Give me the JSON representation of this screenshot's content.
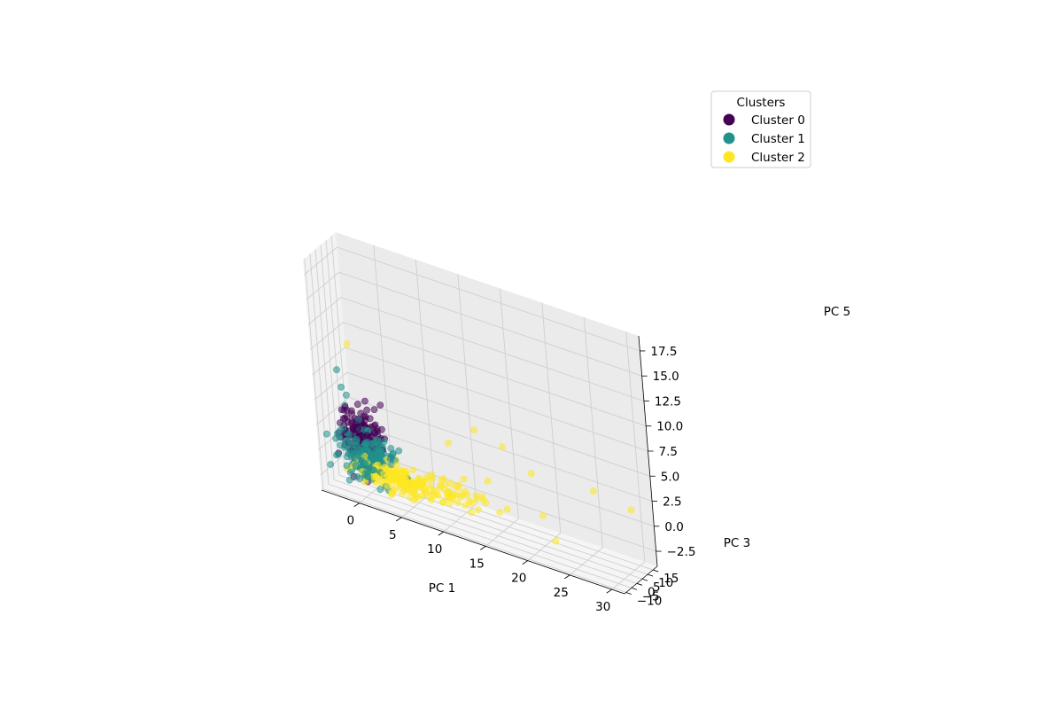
{
  "chart_data": {
    "type": "scatter",
    "projection": "3d",
    "title": "",
    "xlabel": "PC 1",
    "ylabel": "PC 3",
    "zlabel": "PC 5",
    "xlim": [
      -4.5,
      31.5
    ],
    "ylim": [
      -11.5,
      19
    ],
    "zlim": [
      -4,
      19
    ],
    "xticks": [
      0,
      5,
      10,
      15,
      20,
      25,
      30
    ],
    "yticks": [
      -10,
      -5,
      0,
      5,
      10,
      15
    ],
    "zticks": [
      -2.5,
      0.0,
      2.5,
      5.0,
      7.5,
      10.0,
      12.5,
      15.0,
      17.5
    ],
    "xtick_labels": [
      "0",
      "5",
      "10",
      "15",
      "20",
      "25",
      "30"
    ],
    "ytick_labels": [
      "−10",
      "−5",
      "0",
      "5",
      "10",
      "15"
    ],
    "ztick_labels": [
      "−2.5",
      "0.0",
      "2.5",
      "5.0",
      "7.5",
      "10.0",
      "12.5",
      "15.0",
      "17.5"
    ],
    "grid": true,
    "legend": {
      "title": "Clusters",
      "placement": "upper-right"
    },
    "series": [
      {
        "name": "Cluster 0",
        "color": "#440154",
        "center": [
          -1,
          3,
          1
        ],
        "spread": [
          1.3,
          2.2,
          1.3
        ],
        "count": 170,
        "points": []
      },
      {
        "name": "Cluster 1",
        "color": "#21918c",
        "center": [
          0,
          -2,
          -0.3
        ],
        "spread": [
          1.5,
          3.0,
          1.1
        ],
        "count": 220,
        "points": [
          [
            -3.5,
            3,
            7
          ],
          [
            -3,
            2,
            5.5
          ],
          [
            -2.5,
            2.5,
            4.8
          ],
          [
            -3,
            4,
            3.5
          ]
        ]
      },
      {
        "name": "Cluster 2",
        "color": "#fde725",
        "center": [
          4,
          -4,
          -1.2
        ],
        "spread": [
          2.2,
          2.5,
          0.6
        ],
        "count": 230,
        "points": [
          [
            -2,
            3,
            10
          ],
          [
            12,
            8,
            5
          ],
          [
            15,
            10,
            4
          ],
          [
            25,
            15,
            2
          ],
          [
            29,
            18,
            1
          ],
          [
            20,
            5,
            -1
          ],
          [
            22,
            0,
            -2.5
          ],
          [
            10,
            -2,
            0
          ],
          [
            14,
            2,
            1
          ],
          [
            9,
            6,
            3
          ],
          [
            18,
            12,
            2
          ],
          [
            16,
            -4,
            -1
          ]
        ]
      }
    ]
  }
}
